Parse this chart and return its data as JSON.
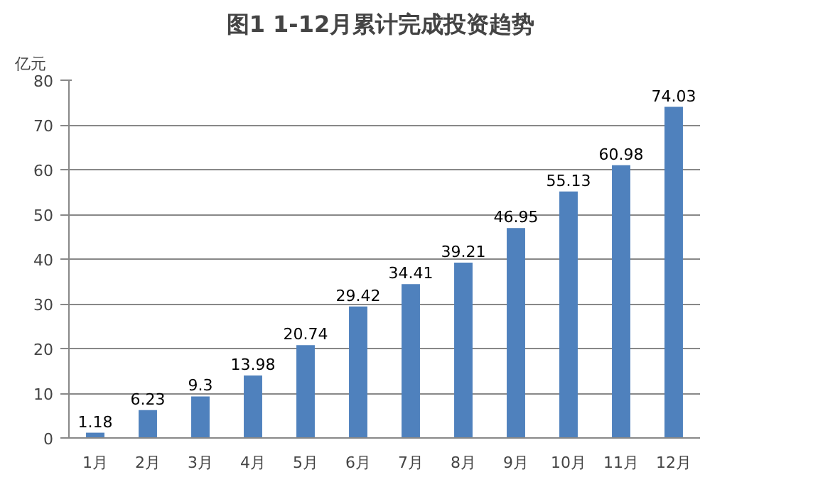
{
  "chart_data": {
    "type": "bar",
    "title": "图1  1-12月累计完成投资趋势",
    "ylabel": "亿元",
    "categories": [
      "1月",
      "2月",
      "3月",
      "4月",
      "5月",
      "6月",
      "7月",
      "8月",
      "9月",
      "10月",
      "11月",
      "12月"
    ],
    "values": [
      1.18,
      6.23,
      9.3,
      13.98,
      20.74,
      29.42,
      34.41,
      39.21,
      46.95,
      55.13,
      60.98,
      74.03
    ],
    "color": "#4f81bd",
    "ylim": [
      0,
      80
    ],
    "yticks": [
      0,
      10,
      20,
      30,
      40,
      50,
      60,
      70,
      80
    ],
    "grid": "y",
    "data_labels": true
  }
}
